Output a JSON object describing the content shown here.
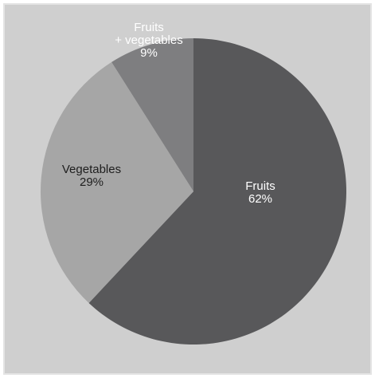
{
  "chart_data": {
    "type": "pie",
    "start_angle_deg": 0,
    "direction": "clockwise",
    "slices": [
      {
        "label": "Fruits",
        "pct_label": "62%",
        "value": 62,
        "color": "#58585a",
        "text_color": "#ffffff"
      },
      {
        "label": "Vegetables",
        "pct_label": "29%",
        "value": 29,
        "color": "#a6a6a6",
        "text_color": "#1e1e1e"
      },
      {
        "label": "Fruits\n+ vegetables",
        "pct_label": "9%",
        "value": 9,
        "color": "#7e7e80",
        "text_color": "#ffffff"
      }
    ],
    "background_color": "#cfcfcf",
    "border_color": "#e4e4e4",
    "legend": "none"
  }
}
